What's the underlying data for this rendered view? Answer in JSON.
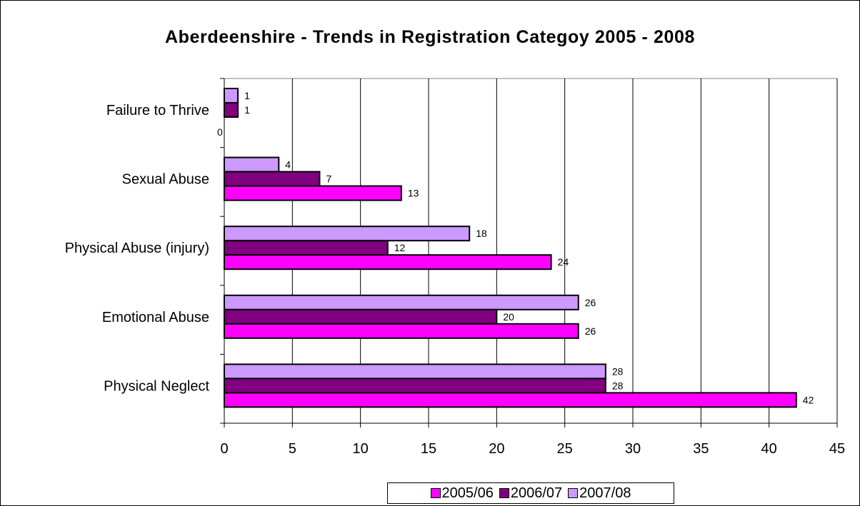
{
  "chart_data": {
    "type": "bar",
    "orientation": "horizontal",
    "title": "Aberdeenshire - Trends in Registration Categoy 2005 - 2008",
    "categories": [
      "Failure to Thrive",
      "Sexual Abuse",
      "Physical Abuse (injury)",
      "Emotional Abuse",
      "Physical Neglect"
    ],
    "series": [
      {
        "name": "2005/06",
        "color": "#FF00FF",
        "values": [
          0,
          13,
          24,
          26,
          42
        ]
      },
      {
        "name": "2006/07",
        "color": "#800080",
        "values": [
          1,
          7,
          12,
          20,
          28
        ]
      },
      {
        "name": "2007/08",
        "color": "#CC99FF",
        "values": [
          1,
          4,
          18,
          26,
          28
        ]
      }
    ],
    "xlim": [
      0,
      45
    ],
    "xticks": [
      0,
      5,
      10,
      15,
      20,
      25,
      30,
      35,
      40,
      45
    ],
    "grid": "vertical",
    "legend": "bottom",
    "data_labels": true
  }
}
